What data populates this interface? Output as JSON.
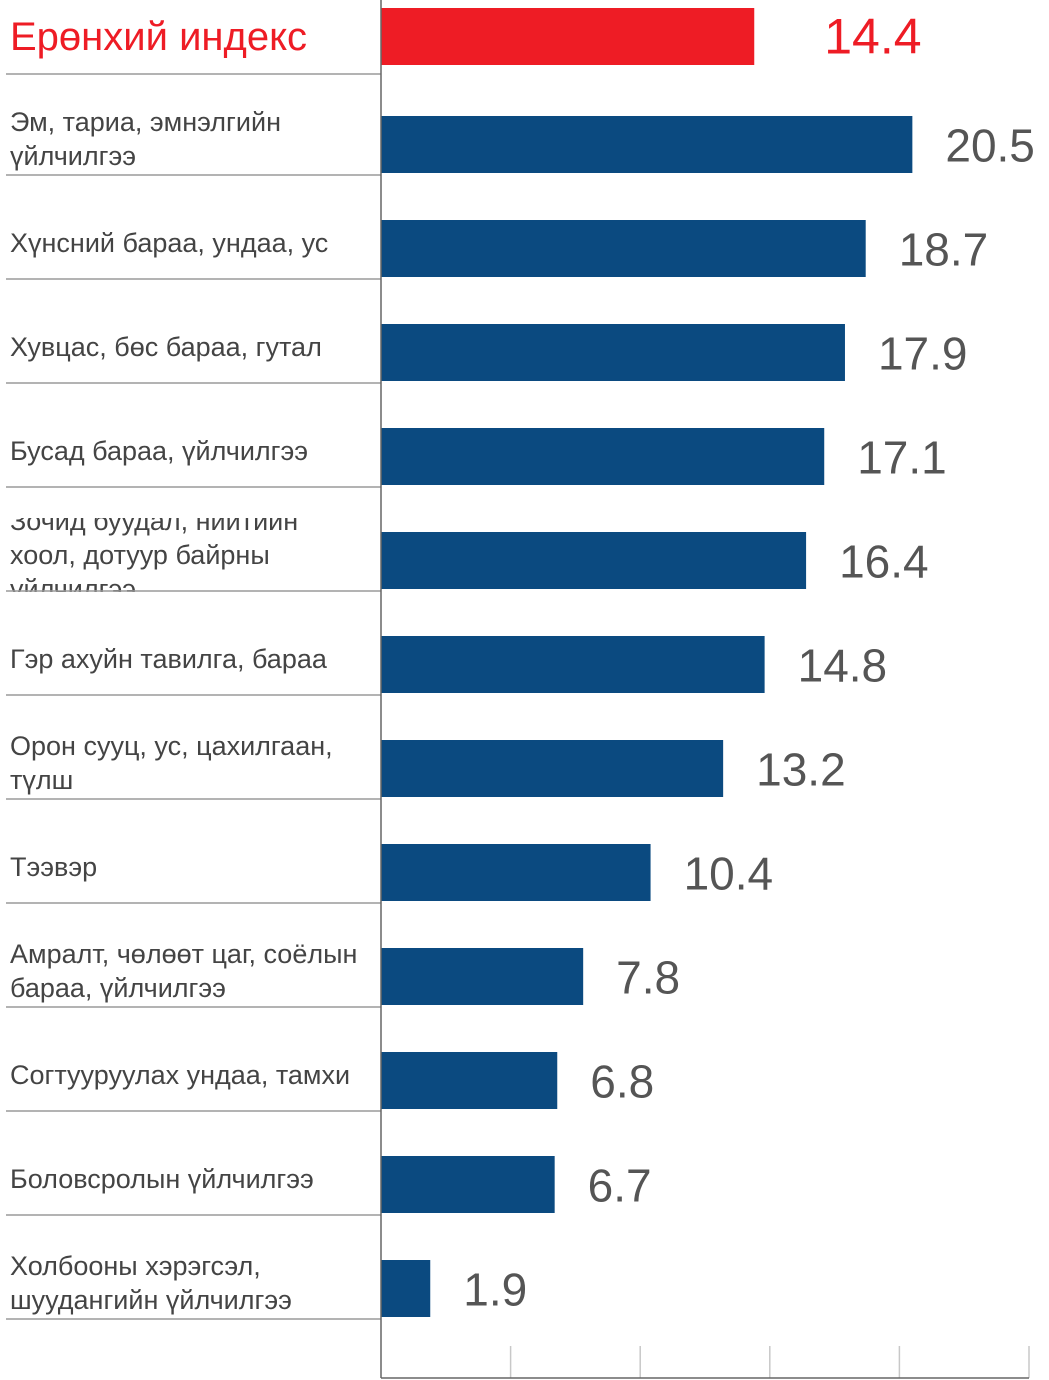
{
  "chart_data": {
    "type": "bar",
    "orientation": "horizontal",
    "categories": [
      "Ерөнхий индекс",
      "Эм, тариа, эмнэлгийн үйлчилгээ",
      "Хүнсний бараа, ундаа, ус",
      "Хувцас, бөс бараа, гутал",
      "Бусад бараа, үйлчилгээ",
      "Зочид буудал, нийтийн хоол, дотуур байрны үйлчилгээ",
      "Гэр ахуйн тавилга, бараа",
      "Орон сууц, ус, цахилгаан, түлш",
      "Тээвэр",
      "Амралт, чөлөөт цаг, соёлын бараа, үйлчилгээ",
      "Согтууруулах ундаа, тамхи",
      "Боловсролын үйлчилгээ",
      "Холбооны хэрэгсэл, шуудангийн үйлчилгээ"
    ],
    "values": [
      14.4,
      20.5,
      18.7,
      17.9,
      17.1,
      16.4,
      14.8,
      13.2,
      10.4,
      7.8,
      6.8,
      6.7,
      1.9
    ],
    "value_labels": [
      "14.4",
      "20.5",
      "18.7",
      "17.9",
      "17.1",
      "16.4",
      "14.8",
      "13.2",
      "10.4",
      "7.8",
      "6.8",
      "6.7",
      "1.9"
    ],
    "highlight_index": 0,
    "xlim": [
      0,
      25
    ],
    "xticks": [
      0,
      5,
      10,
      15,
      20,
      25
    ],
    "xtick_labels": [
      "0",
      "5",
      "10",
      "15",
      "20",
      "25"
    ],
    "grid": "vertical",
    "colors": {
      "bar": "#0b4a80",
      "highlight": "#ee1c25",
      "value_text": "#555555",
      "label_text": "#444444",
      "separator": "#9a9a9a",
      "grid": "#c8c8c8",
      "axis": "#666666"
    }
  }
}
